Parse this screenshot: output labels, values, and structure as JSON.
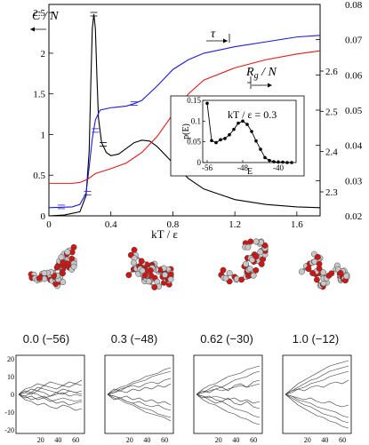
{
  "main_chart": {
    "xlabel": "kT / ε",
    "left_label": "C / N",
    "tau_label": "τ",
    "rg_label": "R",
    "rg_sub": "g",
    "rg_suffix": " / N",
    "x_ticks": [
      "0",
      "0.4",
      "0.8",
      "1.2",
      "1.6"
    ],
    "left_ticks": [
      "0",
      "0.5",
      "1",
      "1.5",
      "2",
      "2.5"
    ],
    "right_outer_ticks": [
      "0.02",
      "0.03",
      "0.04",
      "0.05",
      "0.06",
      "0.07",
      "0.08"
    ],
    "right_inner_ticks": [
      "2.3",
      "2.4",
      "2.5",
      "2.6"
    ],
    "colors": {
      "C": "#000000",
      "tau": "#1a1adc",
      "Rg": "#e01a1a"
    }
  },
  "chart_data": [
    {
      "type": "line",
      "xlabel": "kT / ε",
      "ylabel": "C / N",
      "xlim": [
        0,
        1.75
      ],
      "ylim": [
        0,
        2.6
      ],
      "series": [
        {
          "name": "C / N",
          "axis": "left",
          "x": [
            0.0,
            0.1,
            0.2,
            0.24,
            0.26,
            0.27,
            0.28,
            0.29,
            0.3,
            0.31,
            0.32,
            0.34,
            0.37,
            0.4,
            0.45,
            0.5,
            0.55,
            0.6,
            0.65,
            0.7,
            0.8,
            0.9,
            1.0,
            1.2,
            1.4,
            1.6,
            1.75
          ],
          "y": [
            0.0,
            0.01,
            0.05,
            0.25,
            0.8,
            1.6,
            2.3,
            2.48,
            2.3,
            1.7,
            1.2,
            0.9,
            0.78,
            0.74,
            0.76,
            0.83,
            0.9,
            0.93,
            0.92,
            0.85,
            0.65,
            0.46,
            0.33,
            0.2,
            0.14,
            0.11,
            0.1
          ]
        },
        {
          "name": "τ",
          "axis": "left",
          "x": [
            0.0,
            0.15,
            0.2,
            0.24,
            0.26,
            0.28,
            0.3,
            0.33,
            0.4,
            0.5,
            0.55,
            0.6,
            0.7,
            0.8,
            0.9,
            1.0,
            1.2,
            1.4,
            1.6,
            1.75
          ],
          "y": [
            0.1,
            0.11,
            0.14,
            0.28,
            0.6,
            0.95,
            1.18,
            1.3,
            1.33,
            1.35,
            1.38,
            1.42,
            1.6,
            1.8,
            1.92,
            2.0,
            2.08,
            2.14,
            2.2,
            2.22
          ]
        },
        {
          "name": "R_g / N",
          "axis": "left",
          "x": [
            0.0,
            0.15,
            0.2,
            0.25,
            0.3,
            0.4,
            0.5,
            0.6,
            0.7,
            0.8,
            0.9,
            1.0,
            1.2,
            1.4,
            1.6,
            1.75
          ],
          "y": [
            0.4,
            0.4,
            0.41,
            0.45,
            0.52,
            0.58,
            0.65,
            0.78,
            0.98,
            1.25,
            1.5,
            1.67,
            1.82,
            1.92,
            1.99,
            2.03
          ]
        }
      ]
    },
    {
      "type": "line",
      "title": "kT / ε = 0.3",
      "xlabel": "E",
      "ylabel": "p(E)",
      "xlim": [
        -57,
        -36
      ],
      "ylim": [
        0,
        0.15
      ],
      "x_ticks": [
        "-56",
        "-48",
        "-40"
      ],
      "y_ticks": [
        "0",
        "0.05",
        "0.1",
        "0.15"
      ],
      "series": [
        {
          "name": "p(E)",
          "x": [
            -56,
            -55,
            -54,
            -53,
            -52,
            -51,
            -50,
            -49,
            -48,
            -47,
            -46,
            -45,
            -44,
            -43,
            -42,
            -41,
            -40,
            -39,
            -38,
            -37
          ],
          "y": [
            0.143,
            0.053,
            0.048,
            0.055,
            0.058,
            0.067,
            0.08,
            0.095,
            0.1,
            0.092,
            0.075,
            0.052,
            0.032,
            0.012,
            0.005,
            0.002,
            0.001,
            0.001,
            0.0,
            0.0
          ]
        }
      ]
    },
    {
      "type": "line",
      "panels": [
        {
          "caption": "0.0 (−56)",
          "amp": 3,
          "series": [
            [
              0,
              2,
              1,
              4,
              3,
              2,
              1,
              3,
              2,
              1,
              2
            ],
            [
              0,
              -2,
              -1,
              -3,
              -2,
              -4,
              -3,
              -2,
              -3,
              -4,
              -3
            ],
            [
              0,
              1,
              3,
              2,
              5,
              4,
              3,
              5,
              4,
              6,
              5
            ],
            [
              0,
              -1,
              -3,
              -2,
              -1,
              -3,
              -5,
              -4,
              -6,
              -5,
              -4
            ],
            [
              0,
              3,
              4,
              6,
              5,
              7,
              6,
              5,
              7,
              6,
              8
            ],
            [
              0,
              -3,
              -4,
              -6,
              -5,
              -7,
              -8,
              -6,
              -7,
              -9,
              -8
            ],
            [
              0,
              1,
              0,
              2,
              1,
              -1,
              0,
              1,
              -1,
              0,
              -1
            ],
            [
              0,
              -1,
              1,
              0,
              -2,
              -1,
              1,
              0,
              2,
              1,
              0
            ]
          ]
        },
        {
          "caption": "0.3 (−48)",
          "amp": 3,
          "series": [
            [
              0,
              2,
              4,
              5,
              7,
              8,
              10,
              11,
              12,
              14,
              15
            ],
            [
              0,
              -2,
              -3,
              -5,
              -6,
              -8,
              -10,
              -11,
              -12,
              -13,
              -15
            ],
            [
              0,
              1,
              3,
              4,
              6,
              7,
              8,
              10,
              11,
              12,
              13
            ],
            [
              0,
              -1,
              -2,
              -4,
              -5,
              -7,
              -8,
              -9,
              -11,
              -12,
              -13
            ],
            [
              0,
              3,
              2,
              4,
              5,
              4,
              6,
              7,
              6,
              8,
              9
            ],
            [
              0,
              -3,
              -2,
              -4,
              -5,
              -4,
              -6,
              -7,
              -6,
              -8,
              -9
            ],
            [
              0,
              1,
              2,
              1,
              3,
              2,
              4,
              3,
              5,
              4,
              6
            ],
            [
              0,
              -1,
              -2,
              -1,
              -3,
              -2,
              -4,
              -3,
              -5,
              -4,
              -6
            ]
          ]
        },
        {
          "caption": "0.62 (−30)",
          "amp": 3,
          "series": [
            [
              0,
              3,
              5,
              6,
              8,
              10,
              11,
              12,
              14,
              15,
              16
            ],
            [
              0,
              -3,
              -5,
              -6,
              -8,
              -10,
              -11,
              -13,
              -14,
              -16,
              -17
            ],
            [
              0,
              1,
              3,
              5,
              4,
              6,
              8,
              9,
              10,
              12,
              13
            ],
            [
              0,
              -1,
              -3,
              -5,
              -4,
              -6,
              -8,
              -9,
              -10,
              -12,
              -13
            ],
            [
              0,
              2,
              1,
              3,
              4,
              2,
              5,
              6,
              4,
              7,
              8
            ],
            [
              0,
              -2,
              -1,
              -3,
              -4,
              -2,
              -5,
              -6,
              -4,
              -7,
              -8
            ],
            [
              0,
              1,
              2,
              3,
              2,
              3,
              4,
              5,
              4,
              5,
              6
            ],
            [
              0,
              -1,
              -2,
              -1,
              -2,
              -3,
              -2,
              -4,
              -3,
              -5,
              -4
            ]
          ]
        },
        {
          "caption": "1.0 (−12)",
          "amp": 3,
          "series": [
            [
              0,
              3,
              6,
              8,
              10,
              12,
              14,
              16,
              17,
              18,
              19
            ],
            [
              0,
              -3,
              -6,
              -8,
              -10,
              -12,
              -13,
              -15,
              -16,
              -18,
              -19
            ],
            [
              0,
              2,
              4,
              6,
              8,
              9,
              11,
              13,
              14,
              15,
              16
            ],
            [
              0,
              -2,
              -4,
              -6,
              -7,
              -9,
              -11,
              -12,
              -13,
              -15,
              -16
            ],
            [
              0,
              1,
              3,
              4,
              6,
              7,
              8,
              10,
              11,
              12,
              13
            ],
            [
              0,
              -1,
              -3,
              -4,
              -5,
              -7,
              -8,
              -9,
              -10,
              -12,
              -13
            ],
            [
              0,
              2,
              3,
              2,
              4,
              5,
              4,
              6,
              7,
              6,
              8
            ],
            [
              0,
              -1,
              -2,
              -3,
              -2,
              -4,
              -5,
              -4,
              -6,
              -7,
              -6
            ]
          ]
        }
      ],
      "y_ticks": [
        "20",
        "10",
        "0",
        "-10",
        "-20"
      ],
      "x_ticks": [
        "20",
        "40",
        "60"
      ]
    }
  ]
}
